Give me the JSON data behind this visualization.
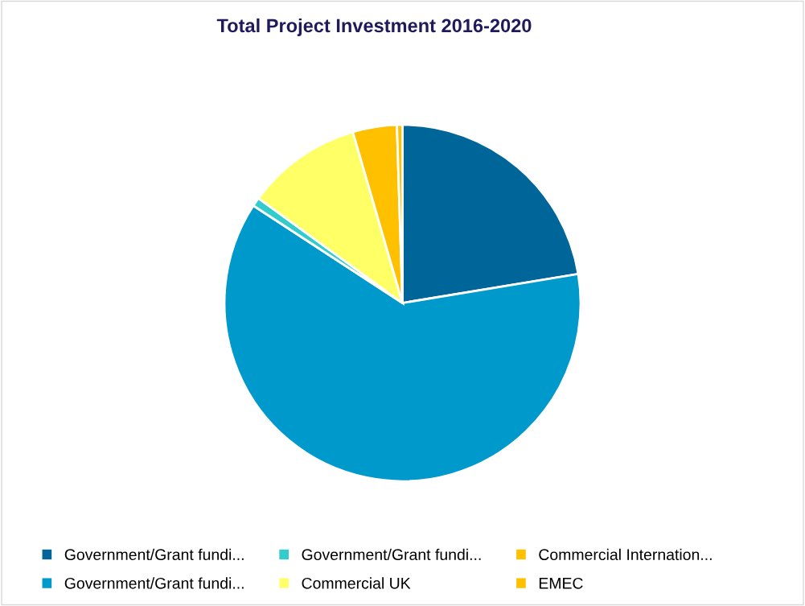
{
  "chart_data": {
    "type": "pie",
    "title": "Total Project Investment 2016-2020",
    "categories": [
      "Government/Grant fundi...",
      "Government/Grant fundi...",
      "Government/Grant fundi...",
      "Commercial UK",
      "Commercial Internation...",
      "EMEC"
    ],
    "values": [
      22.4,
      61.8,
      0.8,
      10.5,
      4.0,
      0.5
    ],
    "colors": [
      "#00669a",
      "#0099cc",
      "#33cccc",
      "#ffff66",
      "#ffc000",
      "#ffc000"
    ],
    "legend": "bottom"
  }
}
